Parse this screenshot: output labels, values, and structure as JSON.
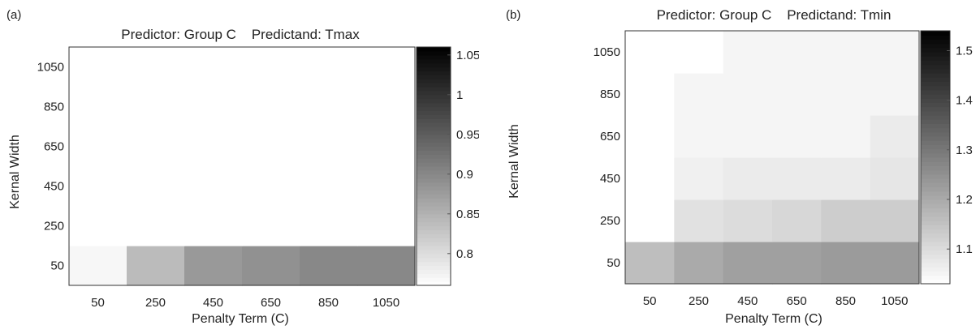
{
  "chart_data": [
    {
      "panel_label": "(a)",
      "type": "heatmap",
      "title": "Predictor: Group C    Predictand: Tmax",
      "xlabel": "Penalty Term (C)",
      "ylabel": "Kernal Width",
      "x": [
        "50",
        "250",
        "450",
        "650",
        "850",
        "1050"
      ],
      "y": [
        "50",
        "250",
        "450",
        "650",
        "850",
        "1050"
      ],
      "z": [
        [
          0.77,
          0.84,
          0.88,
          0.89,
          0.9,
          0.9
        ],
        [
          0.75,
          0.75,
          0.75,
          0.75,
          0.75,
          0.75
        ],
        [
          0.75,
          0.75,
          0.75,
          0.75,
          0.75,
          0.75
        ],
        [
          0.75,
          0.76,
          0.75,
          0.75,
          0.75,
          0.75
        ],
        [
          0.75,
          0.76,
          0.76,
          0.76,
          0.75,
          0.75
        ],
        [
          0.75,
          0.76,
          0.76,
          0.76,
          0.76,
          0.76
        ]
      ],
      "colorbar": {
        "ticks": [
          "0.8",
          "0.85",
          "0.9",
          "0.95",
          "1",
          "1.05"
        ],
        "range": [
          0.76,
          1.06
        ]
      },
      "colormap": "white-to-black"
    },
    {
      "panel_label": "(b)",
      "type": "heatmap",
      "title": "Predictor: Group C    Predictand: Tmin",
      "xlabel": "Penalty Term (C)",
      "ylabel": "Kernal Width",
      "x": [
        "50",
        "250",
        "450",
        "650",
        "850",
        "1050"
      ],
      "y": [
        "50",
        "250",
        "450",
        "650",
        "850",
        "1050"
      ],
      "z": [
        [
          1.16,
          1.2,
          1.22,
          1.22,
          1.23,
          1.23
        ],
        [
          1.03,
          1.09,
          1.1,
          1.11,
          1.13,
          1.13
        ],
        [
          1.03,
          1.06,
          1.07,
          1.07,
          1.07,
          1.08
        ],
        [
          1.03,
          1.05,
          1.05,
          1.05,
          1.05,
          1.07
        ],
        [
          1.03,
          1.05,
          1.05,
          1.05,
          1.05,
          1.05
        ],
        [
          1.03,
          1.03,
          1.05,
          1.05,
          1.05,
          1.05
        ]
      ],
      "colorbar": {
        "ticks": [
          "1.1",
          "1.2",
          "1.3",
          "1.4",
          "1.5"
        ],
        "range": [
          1.03,
          1.54
        ]
      },
      "colormap": "white-to-black"
    }
  ]
}
